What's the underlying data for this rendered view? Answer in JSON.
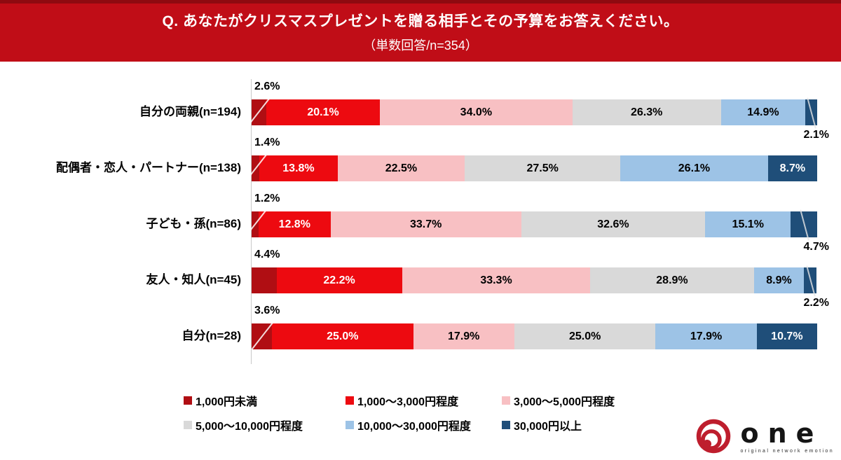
{
  "header": {
    "title": "Q. あなたがクリスマスプレゼントを贈る相手とその予算をお答えください。",
    "subtitle": "（単数回答/n=354）",
    "background_color": "#C00D17",
    "border_color": "#8E0A10",
    "text_color": "#FFFFFF"
  },
  "chart_data": {
    "type": "bar",
    "orientation": "horizontal",
    "stacked": true,
    "unit": "%",
    "value_format": "one_decimal_percent",
    "legend_position": "bottom",
    "grid": false,
    "axis": {
      "baseline_color": "#C8C8C8",
      "xlim": [
        0,
        100
      ]
    },
    "categories": [
      "自分の両親(n=194)",
      "配偶者・恋人・パートナー(n=138)",
      "子ども・孫(n=86)",
      "友人・知人(n=45)",
      "自分(n=28)"
    ],
    "series": [
      {
        "name": "1,000円未満",
        "color": "#B00E13",
        "values": [
          2.6,
          1.4,
          1.2,
          4.4,
          3.6
        ]
      },
      {
        "name": "1,000～3,000円程度",
        "color": "#ED0A10",
        "values": [
          20.1,
          13.8,
          12.8,
          22.2,
          25.0
        ]
      },
      {
        "name": "3,000～5,000円程度",
        "color": "#F8C0C3",
        "values": [
          34.0,
          22.5,
          33.7,
          33.3,
          17.9
        ]
      },
      {
        "name": "5,000～10,000円程度",
        "color": "#D9D9D9",
        "values": [
          26.3,
          27.5,
          32.6,
          28.9,
          25.0
        ]
      },
      {
        "name": "10,000～30,000円程度",
        "color": "#9DC3E6",
        "values": [
          14.9,
          26.1,
          15.1,
          8.9,
          17.9
        ]
      },
      {
        "name": "30,000円以上",
        "color": "#1F4E79",
        "values": [
          2.1,
          8.7,
          4.7,
          2.2,
          10.7
        ]
      }
    ]
  },
  "logo": {
    "text": "one",
    "tagline": "original network emotion",
    "color": "#BE1E2D"
  }
}
